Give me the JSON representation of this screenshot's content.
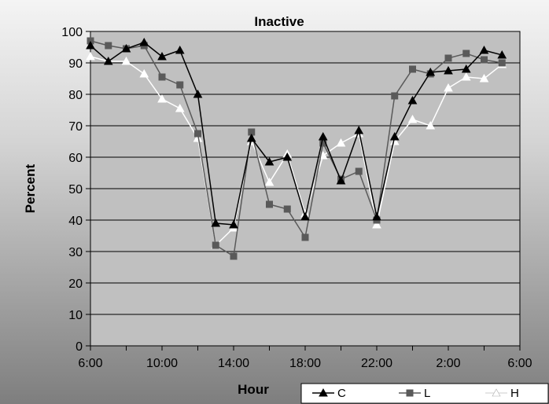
{
  "chart_data": {
    "type": "line",
    "title": "Inactive",
    "xlabel": "Hour",
    "ylabel": "Percent",
    "ylim": [
      0,
      100
    ],
    "yticks": [
      0,
      10,
      20,
      30,
      40,
      50,
      60,
      70,
      80,
      90,
      100
    ],
    "xtick_labels": [
      "6:00",
      "10:00",
      "14:00",
      "18:00",
      "22:00",
      "2:00",
      "6:00"
    ],
    "xtick_positions": [
      0,
      4,
      8,
      12,
      16,
      20,
      24
    ],
    "x_hours": [
      0,
      1,
      2,
      3,
      4,
      5,
      6,
      7,
      8,
      9,
      10,
      11,
      12,
      13,
      14,
      15,
      16,
      17,
      18,
      19,
      20,
      21,
      22,
      23
    ],
    "grid": "horizontal",
    "legend_position": "bottom-right",
    "plot_background": "#c0c0c0",
    "series": [
      {
        "name": "C",
        "color": "#000000",
        "marker": "triangle",
        "values": [
          95.5,
          90.5,
          94.5,
          96.5,
          92,
          94,
          80,
          39,
          38.5,
          66,
          58.5,
          60,
          41,
          66.5,
          52.5,
          68.5,
          41,
          66.5,
          78,
          87,
          87.5,
          88,
          94,
          92.5
        ]
      },
      {
        "name": "L",
        "color": "#5a5a5a",
        "marker": "square",
        "values": [
          97,
          95.5,
          94.5,
          95.5,
          85.5,
          83,
          67.5,
          32,
          28.5,
          68,
          45,
          43.5,
          34.5,
          64.5,
          53,
          55.5,
          40,
          79.5,
          88,
          86.5,
          91.5,
          93,
          91,
          90
        ]
      },
      {
        "name": "H",
        "color": "#ffffff",
        "marker": "triangle",
        "values": [
          92,
          90.5,
          90.5,
          86.5,
          78.5,
          75.5,
          66,
          32,
          37.5,
          65,
          52,
          61,
          42,
          60.5,
          64.5,
          67.5,
          38.5,
          65,
          72,
          70,
          82,
          85.5,
          85,
          89.5
        ]
      }
    ]
  }
}
